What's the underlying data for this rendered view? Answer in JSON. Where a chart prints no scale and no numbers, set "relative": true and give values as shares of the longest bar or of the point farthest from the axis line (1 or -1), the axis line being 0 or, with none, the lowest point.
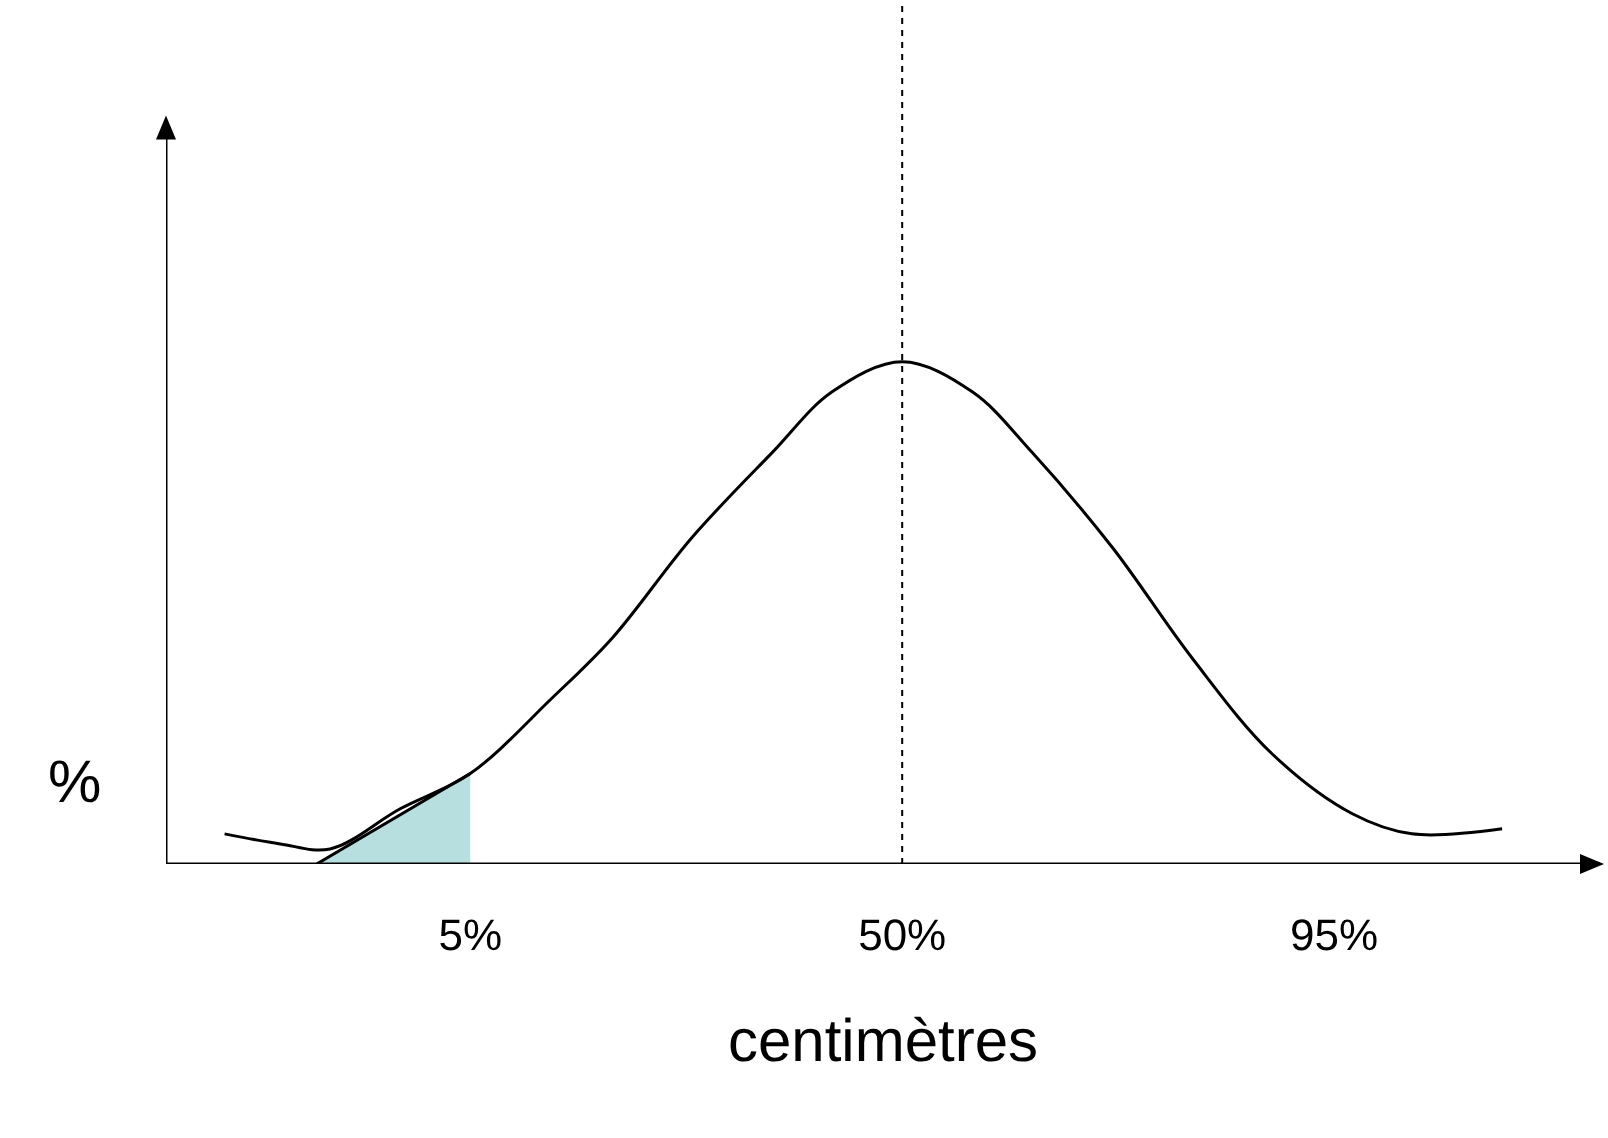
{
  "chart_data": {
    "type": "line",
    "relative": true,
    "xlabel": "centimètres",
    "ylabel": "%",
    "xlim": [
      -26.7,
      122.7
    ],
    "xticks": [
      {
        "value": 5,
        "label": "5%"
      },
      {
        "value": 50,
        "label": "50%"
      },
      {
        "value": 95,
        "label": "95%"
      }
    ],
    "grid": false,
    "marker": "none",
    "series": [
      {
        "color": "#000000",
        "line_style": "solid",
        "x": [
          -20.6,
          -14.8,
          -9.6,
          -2.3,
          5,
          13.5,
          19.8,
          28.1,
          36.5,
          42.7,
          50,
          57.3,
          63.5,
          71.9,
          80.2,
          88.5,
          96.9,
          103.1,
          112.5
        ],
        "values": [
          0.06,
          0.04,
          0.03,
          0.11,
          0.18,
          0.33,
          0.45,
          0.65,
          0.82,
          0.94,
          1,
          0.94,
          0.82,
          0.63,
          0.41,
          0.22,
          0.1,
          0.06,
          0.07
        ]
      },
      {
        "type": "area",
        "color": "#b7dfe0",
        "x": [
          -11.0,
          5
        ],
        "values": [
          0,
          0.18
        ]
      }
    ],
    "ref_lines": [
      {
        "axis": "x",
        "value": 50,
        "line_style": "dotted",
        "color": "#000000"
      }
    ]
  }
}
